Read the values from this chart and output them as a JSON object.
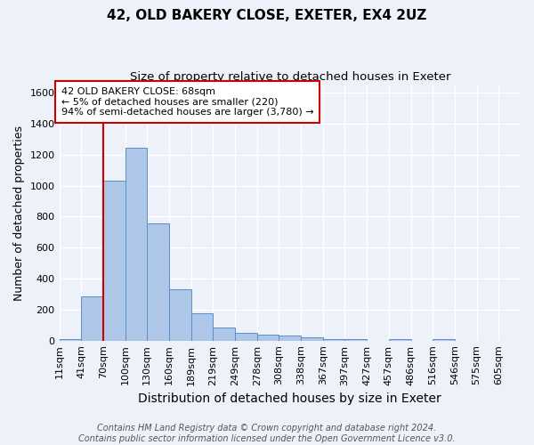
{
  "title1": "42, OLD BAKERY CLOSE, EXETER, EX4 2UZ",
  "title2": "Size of property relative to detached houses in Exeter",
  "xlabel": "Distribution of detached houses by size in Exeter",
  "ylabel": "Number of detached properties",
  "bar_labels": [
    "11sqm",
    "41sqm",
    "70sqm",
    "100sqm",
    "130sqm",
    "160sqm",
    "189sqm",
    "219sqm",
    "249sqm",
    "278sqm",
    "308sqm",
    "338sqm",
    "367sqm",
    "397sqm",
    "427sqm",
    "457sqm",
    "486sqm",
    "516sqm",
    "546sqm",
    "575sqm",
    "605sqm"
  ],
  "bar_values": [
    10,
    285,
    1035,
    1245,
    755,
    330,
    178,
    85,
    48,
    37,
    30,
    20,
    12,
    10,
    0,
    12,
    0,
    12,
    0,
    0,
    0
  ],
  "bar_color": "#aec6e8",
  "bar_edge_color": "#5b8fc9",
  "vline_x": 2.0,
  "vline_color": "#cc0000",
  "annotation_text": "42 OLD BAKERY CLOSE: 68sqm\n← 5% of detached houses are smaller (220)\n94% of semi-detached houses are larger (3,780) →",
  "annotation_box_color": "#ffffff",
  "annotation_box_edge": "#cc0000",
  "footnote": "Contains HM Land Registry data © Crown copyright and database right 2024.\nContains public sector information licensed under the Open Government Licence v3.0.",
  "ylim": [
    0,
    1650
  ],
  "yticks": [
    0,
    200,
    400,
    600,
    800,
    1000,
    1200,
    1400,
    1600
  ],
  "background_color": "#edf1f9",
  "grid_color": "#ffffff",
  "title1_fontsize": 11,
  "title2_fontsize": 9.5,
  "xlabel_fontsize": 10,
  "ylabel_fontsize": 9,
  "tick_fontsize": 8,
  "footnote_fontsize": 7,
  "annotation_fontsize": 8
}
